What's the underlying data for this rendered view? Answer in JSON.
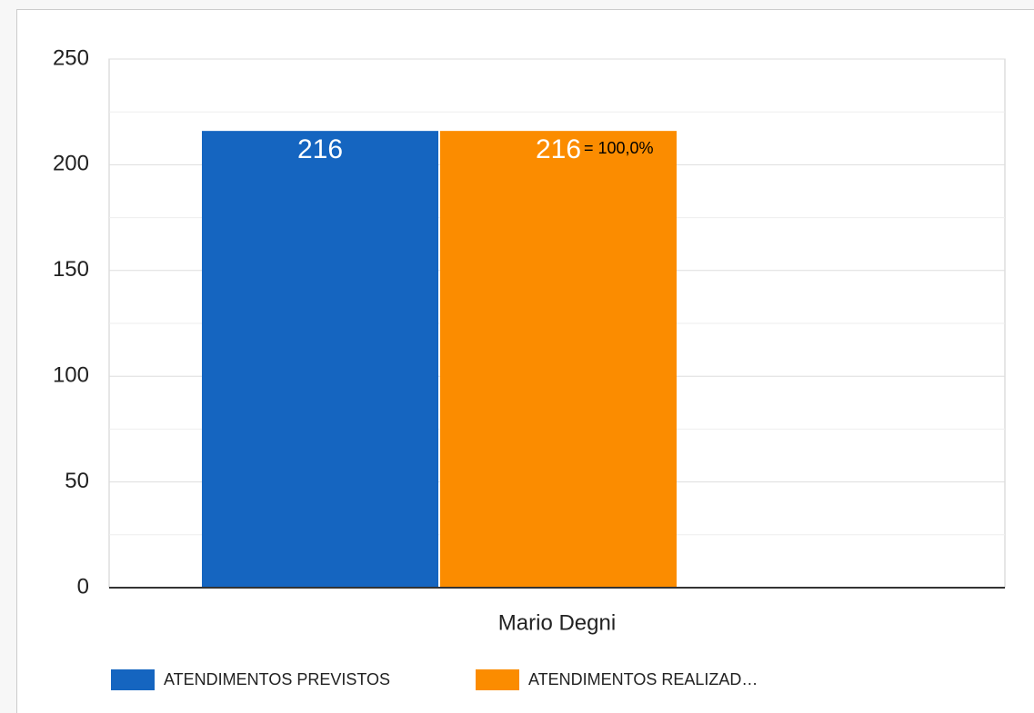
{
  "chart_data": {
    "type": "bar",
    "categories": [
      "Mario Degni"
    ],
    "series": [
      {
        "name": "ATENDIMENTOS PREVISTOS",
        "color": "#1565c0",
        "values": [
          216
        ]
      },
      {
        "name": "ATENDIMENTOS REALIZAD…",
        "color": "#fb8c00",
        "values": [
          216
        ]
      }
    ],
    "annotation": "= 100,0%",
    "ylim": [
      0,
      250
    ],
    "yticks": [
      0,
      50,
      100,
      150,
      200,
      250
    ],
    "minor_yticks": [
      25,
      75,
      125,
      175,
      225
    ],
    "grid": true,
    "legend": "bottom"
  }
}
